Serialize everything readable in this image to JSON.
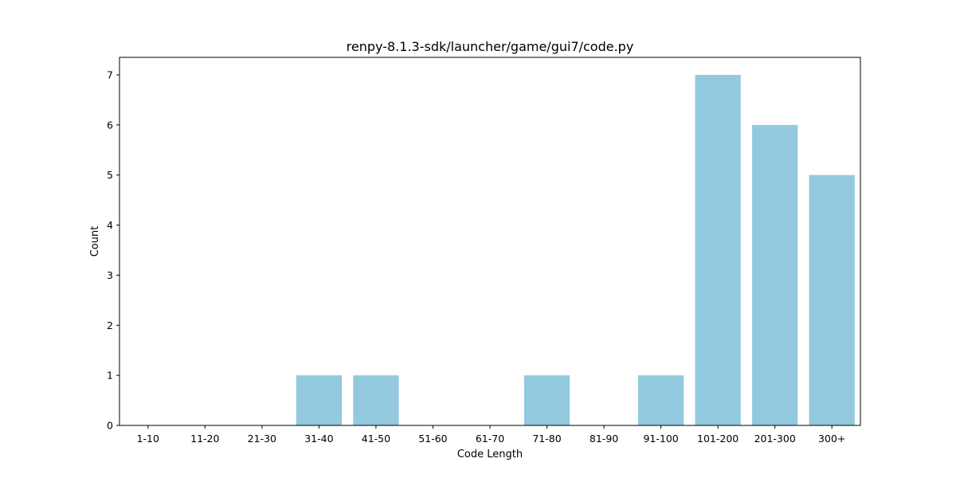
{
  "chart_data": {
    "type": "bar",
    "title": "renpy-8.1.3-sdk/launcher/game/gui7/code.py",
    "xlabel": "Code Length",
    "ylabel": "Count",
    "categories": [
      "1-10",
      "11-20",
      "21-30",
      "31-40",
      "41-50",
      "51-60",
      "61-70",
      "71-80",
      "81-90",
      "91-100",
      "101-200",
      "201-300",
      "300+"
    ],
    "values": [
      0,
      0,
      0,
      1,
      1,
      0,
      0,
      1,
      0,
      1,
      7,
      6,
      5
    ],
    "ylim": [
      0,
      7.35
    ],
    "yticks": [
      0,
      1,
      2,
      3,
      4,
      5,
      6,
      7
    ],
    "grid": false,
    "legend": "none",
    "bar_color": "#92c9de"
  }
}
